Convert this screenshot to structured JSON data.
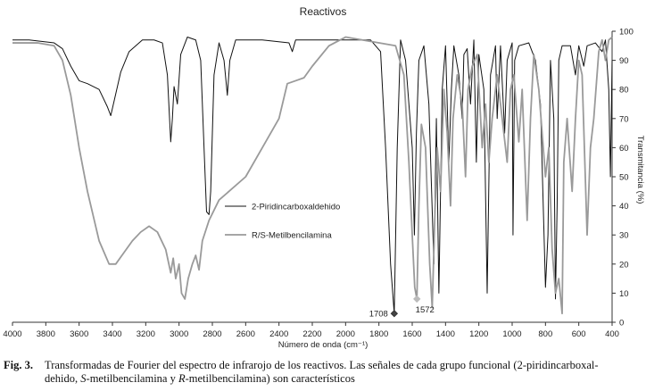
{
  "chart_data": {
    "type": "line",
    "title": "Reactivos",
    "x_label": "Número de onda (cm⁻¹)",
    "y_label": "Transmitancia (%)",
    "xlim": [
      4000,
      400
    ],
    "ylim": [
      0,
      100
    ],
    "xticks": [
      4000,
      3800,
      3600,
      3400,
      3200,
      3000,
      2800,
      2600,
      2400,
      2200,
      2000,
      1800,
      1600,
      1400,
      1200,
      1000,
      800,
      600,
      400
    ],
    "yticks": [
      0,
      10,
      20,
      30,
      40,
      50,
      60,
      70,
      80,
      90,
      100
    ],
    "y_axis_side": "right",
    "grid": false,
    "series": [
      {
        "name": "2-Piridincarboxaldehido",
        "color": "#111111",
        "x": [
          4000,
          3900,
          3750,
          3700,
          3650,
          3600,
          3550,
          3480,
          3430,
          3410,
          3390,
          3350,
          3300,
          3220,
          3150,
          3100,
          3070,
          3050,
          3040,
          3030,
          3010,
          2990,
          2950,
          2900,
          2870,
          2850,
          2835,
          2820,
          2810,
          2790,
          2760,
          2730,
          2710,
          2695,
          2660,
          2500,
          2340,
          2320,
          2300,
          2000,
          1850,
          1790,
          1760,
          1730,
          1708,
          1690,
          1670,
          1640,
          1600,
          1587,
          1575,
          1560,
          1530,
          1500,
          1470,
          1455,
          1440,
          1420,
          1400,
          1380,
          1365,
          1350,
          1320,
          1300,
          1290,
          1270,
          1250,
          1230,
          1215,
          1200,
          1170,
          1150,
          1130,
          1100,
          1090,
          1070,
          1045,
          1030,
          1000,
          995,
          985,
          960,
          900,
          860,
          830,
          800,
          785,
          770,
          750,
          740,
          730,
          720,
          700,
          650,
          620,
          600,
          570,
          550,
          500,
          460,
          440,
          420,
          410,
          400
        ],
        "values": [
          97,
          97,
          96,
          94,
          88,
          83,
          82,
          80,
          74,
          71,
          76,
          86,
          93,
          97,
          97,
          96,
          85,
          62,
          70,
          81,
          75,
          92,
          98,
          97,
          90,
          60,
          38,
          37,
          45,
          85,
          96,
          90,
          78,
          90,
          97,
          97,
          96,
          93,
          97,
          97,
          97,
          93,
          60,
          20,
          3,
          60,
          97,
          90,
          60,
          30,
          65,
          90,
          95,
          75,
          20,
          70,
          10,
          80,
          95,
          55,
          80,
          95,
          85,
          70,
          92,
          94,
          75,
          97,
          55,
          92,
          80,
          10,
          85,
          95,
          70,
          95,
          65,
          90,
          96,
          30,
          90,
          95,
          96,
          90,
          75,
          12,
          30,
          90,
          70,
          8,
          40,
          90,
          95,
          95,
          85,
          95,
          88,
          95,
          96,
          93,
          97,
          80,
          50,
          90
        ]
      },
      {
        "name": "R/S-Metilbencilamina",
        "color": "#9a9a9a",
        "x": [
          4000,
          3850,
          3750,
          3700,
          3650,
          3600,
          3550,
          3480,
          3420,
          3380,
          3330,
          3280,
          3230,
          3180,
          3130,
          3080,
          3050,
          3035,
          3020,
          3000,
          2985,
          2965,
          2945,
          2920,
          2900,
          2880,
          2860,
          2820,
          2760,
          2700,
          2600,
          2500,
          2400,
          2350,
          2300,
          2250,
          2200,
          2100,
          2000,
          1900,
          1800,
          1700,
          1650,
          1620,
          1600,
          1585,
          1572,
          1560,
          1545,
          1520,
          1495,
          1480,
          1465,
          1450,
          1430,
          1410,
          1390,
          1370,
          1355,
          1330,
          1300,
          1280,
          1265,
          1240,
          1210,
          1180,
          1160,
          1140,
          1120,
          1090,
          1060,
          1030,
          1010,
          990,
          960,
          940,
          910,
          890,
          870,
          840,
          800,
          780,
          760,
          740,
          720,
          700,
          690,
          670,
          640,
          620,
          600,
          580,
          550,
          530,
          510,
          480,
          460,
          440,
          420,
          400
        ],
        "values": [
          96,
          96,
          95,
          90,
          78,
          60,
          45,
          28,
          20,
          20,
          24,
          28,
          31,
          33,
          31,
          25,
          17,
          22,
          15,
          20,
          10,
          8,
          15,
          20,
          23,
          18,
          28,
          35,
          42,
          45,
          50,
          60,
          70,
          82,
          83,
          84,
          88,
          95,
          98,
          97,
          96,
          95,
          85,
          55,
          30,
          12,
          8,
          40,
          68,
          60,
          20,
          5,
          35,
          60,
          45,
          80,
          65,
          40,
          70,
          85,
          75,
          50,
          80,
          88,
          92,
          60,
          75,
          55,
          70,
          85,
          70,
          55,
          80,
          85,
          62,
          80,
          35,
          70,
          92,
          80,
          50,
          60,
          25,
          10,
          15,
          3,
          55,
          70,
          45,
          70,
          90,
          85,
          30,
          60,
          70,
          93,
          97,
          90,
          97,
          98
        ]
      }
    ],
    "annotations": [
      {
        "x": 1708,
        "y": 3,
        "color": "#444444",
        "label_side": "left"
      },
      {
        "x": 1572,
        "y": 8,
        "color": "#bbbbbb",
        "label_side": "below"
      }
    ]
  },
  "caption": {
    "label": "Fig. 3.",
    "line1": "Transformadas de Fourier del espectro de infrarojo de los reactivos. Las señales de cada grupo funcional (2-piridincarboxal-",
    "line2": [
      "dehido, ",
      "S",
      "-metilbencilamina y ",
      "R",
      "-metilbencilamina) son característicos"
    ]
  }
}
